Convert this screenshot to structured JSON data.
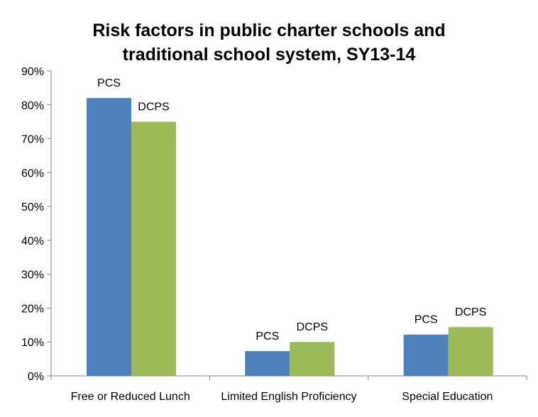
{
  "chart_data": {
    "type": "bar",
    "title_lines": [
      "Risk factors in public charter schools and",
      "traditional school system, SY13-14"
    ],
    "categories": [
      "Free or Reduced Lunch",
      "Limited English Proficiency",
      "Special Education"
    ],
    "series": [
      {
        "name": "PCS",
        "color": "#4f81bd",
        "values": [
          82,
          7.3,
          12.2
        ]
      },
      {
        "name": "DCPS",
        "color": "#9bbb59",
        "values": [
          75,
          10,
          14.4
        ]
      }
    ],
    "bar_labels": [
      [
        "PCS",
        "PCS",
        "PCS"
      ],
      [
        "DCPS",
        "DCPS",
        "DCPS"
      ]
    ],
    "ylim": [
      0,
      90
    ],
    "y_ticks": [
      "0%",
      "10%",
      "20%",
      "30%",
      "40%",
      "50%",
      "60%",
      "70%",
      "80%",
      "90%"
    ],
    "xlabel": "",
    "ylabel": "",
    "grid": false,
    "legend": "none"
  }
}
